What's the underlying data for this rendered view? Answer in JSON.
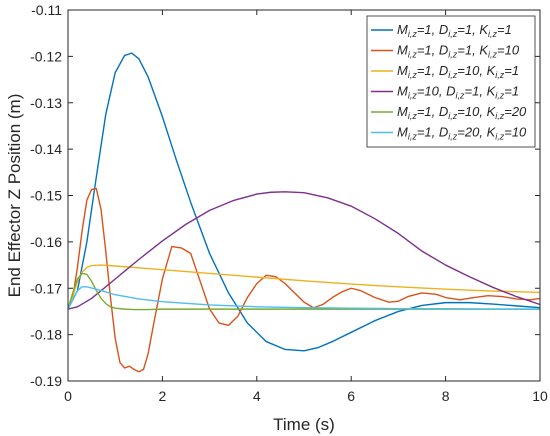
{
  "chart_data": {
    "type": "line",
    "xlabel": "Time (s)",
    "ylabel": "End Effector Z Position (m)",
    "xlim": [
      0,
      10
    ],
    "ylim": [
      -0.19,
      -0.11
    ],
    "xticks": [
      0,
      2,
      4,
      6,
      8,
      10
    ],
    "yticks": [
      -0.19,
      -0.18,
      -0.17,
      -0.16,
      -0.15,
      -0.14,
      -0.13,
      -0.12,
      -0.11
    ],
    "xtick_labels": [
      "0",
      "2",
      "4",
      "6",
      "8",
      "10"
    ],
    "ytick_labels": [
      "-0.19",
      "-0.18",
      "-0.17",
      "-0.16",
      "-0.15",
      "-0.14",
      "-0.13",
      "-0.12",
      "-0.11"
    ],
    "grid": false,
    "legend_position": "top-right",
    "series": [
      {
        "label": [
          [
            "M",
            "i,z",
            "=1, "
          ],
          [
            "D",
            "i,z",
            "=1, "
          ],
          [
            "K",
            "i,z",
            "=1",
            ""
          ]
        ],
        "color": "#0072BD",
        "x": [
          0,
          0.2,
          0.4,
          0.6,
          0.8,
          1.0,
          1.2,
          1.35,
          1.5,
          1.7,
          2.0,
          2.3,
          2.6,
          3.0,
          3.4,
          3.8,
          4.2,
          4.6,
          5.0,
          5.3,
          5.6,
          6.0,
          6.5,
          7.0,
          7.5,
          8.0,
          8.5,
          9.0,
          9.5,
          10.0
        ],
        "y": [
          -0.1745,
          -0.1705,
          -0.16,
          -0.146,
          -0.1325,
          -0.1235,
          -0.1198,
          -0.1193,
          -0.1205,
          -0.1245,
          -0.133,
          -0.1425,
          -0.1515,
          -0.1625,
          -0.171,
          -0.1775,
          -0.1815,
          -0.1832,
          -0.1835,
          -0.1828,
          -0.1815,
          -0.1795,
          -0.177,
          -0.175,
          -0.1737,
          -0.1731,
          -0.1731,
          -0.1734,
          -0.1738,
          -0.1742
        ]
      },
      {
        "label": [
          [
            "M",
            "i,z",
            "=1, "
          ],
          [
            "D",
            "i,z",
            "=1, "
          ],
          [
            "K",
            "i,z",
            "=10",
            ""
          ]
        ],
        "color": "#D95319",
        "x": [
          0,
          0.1,
          0.2,
          0.3,
          0.4,
          0.5,
          0.6,
          0.7,
          0.8,
          0.9,
          1.0,
          1.1,
          1.2,
          1.3,
          1.4,
          1.5,
          1.6,
          1.7,
          1.8,
          2.0,
          2.2,
          2.4,
          2.6,
          2.8,
          3.0,
          3.2,
          3.4,
          3.6,
          3.8,
          4.0,
          4.2,
          4.4,
          4.6,
          4.8,
          5.0,
          5.2,
          5.4,
          5.6,
          5.8,
          6.0,
          6.2,
          6.5,
          6.8,
          7.0,
          7.2,
          7.5,
          7.8,
          8.0,
          8.3,
          8.6,
          8.9,
          9.2,
          9.5,
          9.8,
          10.0
        ],
        "y": [
          -0.1745,
          -0.172,
          -0.1655,
          -0.1575,
          -0.151,
          -0.1487,
          -0.1485,
          -0.153,
          -0.162,
          -0.172,
          -0.1808,
          -0.186,
          -0.1872,
          -0.1868,
          -0.1875,
          -0.188,
          -0.1875,
          -0.184,
          -0.1785,
          -0.168,
          -0.161,
          -0.1613,
          -0.1625,
          -0.1685,
          -0.1745,
          -0.1775,
          -0.178,
          -0.176,
          -0.172,
          -0.169,
          -0.1672,
          -0.1675,
          -0.169,
          -0.171,
          -0.173,
          -0.1742,
          -0.1735,
          -0.172,
          -0.1708,
          -0.17,
          -0.1705,
          -0.172,
          -0.173,
          -0.1728,
          -0.1718,
          -0.171,
          -0.1713,
          -0.172,
          -0.1725,
          -0.172,
          -0.1716,
          -0.1718,
          -0.1723,
          -0.1725,
          -0.1722
        ]
      },
      {
        "label": [
          [
            "M",
            "i,z",
            "=1, "
          ],
          [
            "D",
            "i,z",
            "=10, "
          ],
          [
            "K",
            "i,z",
            "=1",
            ""
          ]
        ],
        "color": "#EDB120",
        "x": [
          0,
          0.1,
          0.2,
          0.3,
          0.4,
          0.5,
          0.7,
          1.0,
          2.0,
          3.0,
          4.0,
          5.0,
          6.0,
          7.0,
          8.0,
          9.0,
          10.0
        ],
        "y": [
          -0.1745,
          -0.1718,
          -0.1685,
          -0.1665,
          -0.1655,
          -0.1651,
          -0.165,
          -0.1652,
          -0.166,
          -0.1668,
          -0.1676,
          -0.1684,
          -0.1691,
          -0.1697,
          -0.1702,
          -0.1706,
          -0.1709
        ]
      },
      {
        "label": [
          [
            "M",
            "i,z",
            "=10, "
          ],
          [
            "D",
            "i,z",
            "=1, "
          ],
          [
            "K",
            "i,z",
            "=1",
            ""
          ]
        ],
        "color": "#7E2F8E",
        "x": [
          0,
          0.2,
          0.5,
          1.0,
          1.5,
          2.0,
          2.5,
          3.0,
          3.5,
          4.0,
          4.3,
          4.6,
          5.0,
          5.5,
          6.0,
          6.5,
          7.0,
          7.5,
          8.0,
          8.5,
          9.0,
          9.5,
          10.0
        ],
        "y": [
          -0.1745,
          -0.174,
          -0.1722,
          -0.168,
          -0.1638,
          -0.1598,
          -0.1562,
          -0.1532,
          -0.1511,
          -0.1497,
          -0.1493,
          -0.1492,
          -0.1494,
          -0.1505,
          -0.1523,
          -0.155,
          -0.1582,
          -0.162,
          -0.165,
          -0.1675,
          -0.1698,
          -0.1718,
          -0.1735
        ]
      },
      {
        "label": [
          [
            "M",
            "i,z",
            "=1, "
          ],
          [
            "D",
            "i,z",
            "=10, "
          ],
          [
            "K",
            "i,z",
            "=20",
            ""
          ]
        ],
        "color": "#77AC30",
        "x": [
          0,
          0.1,
          0.2,
          0.3,
          0.4,
          0.5,
          0.6,
          0.7,
          0.8,
          0.9,
          1.0,
          1.2,
          1.4,
          1.7,
          2.0,
          3.0,
          4.0,
          5.0,
          6.0,
          7.0,
          8.0,
          9.0,
          10.0
        ],
        "y": [
          -0.1745,
          -0.171,
          -0.168,
          -0.1668,
          -0.167,
          -0.1685,
          -0.1705,
          -0.1722,
          -0.1733,
          -0.174,
          -0.1743,
          -0.1745,
          -0.1746,
          -0.1746,
          -0.1745,
          -0.1745,
          -0.1745,
          -0.1745,
          -0.1745,
          -0.1745,
          -0.1745,
          -0.1745,
          -0.1745
        ]
      },
      {
        "label": [
          [
            "M",
            "i,z",
            "=1, "
          ],
          [
            "D",
            "i,z",
            "=20, "
          ],
          [
            "K",
            "i,z",
            "=10",
            ""
          ]
        ],
        "color": "#4DBEEE",
        "x": [
          0,
          0.1,
          0.2,
          0.3,
          0.4,
          0.6,
          0.8,
          1.0,
          1.5,
          2.0,
          3.0,
          4.0,
          5.0,
          6.0,
          7.0,
          8.0,
          9.0,
          10.0
        ],
        "y": [
          -0.1745,
          -0.1725,
          -0.1705,
          -0.1697,
          -0.1697,
          -0.1702,
          -0.1708,
          -0.1714,
          -0.1723,
          -0.1729,
          -0.1736,
          -0.174,
          -0.1742,
          -0.1743,
          -0.1744,
          -0.1744,
          -0.1745,
          -0.1745
        ]
      }
    ]
  }
}
